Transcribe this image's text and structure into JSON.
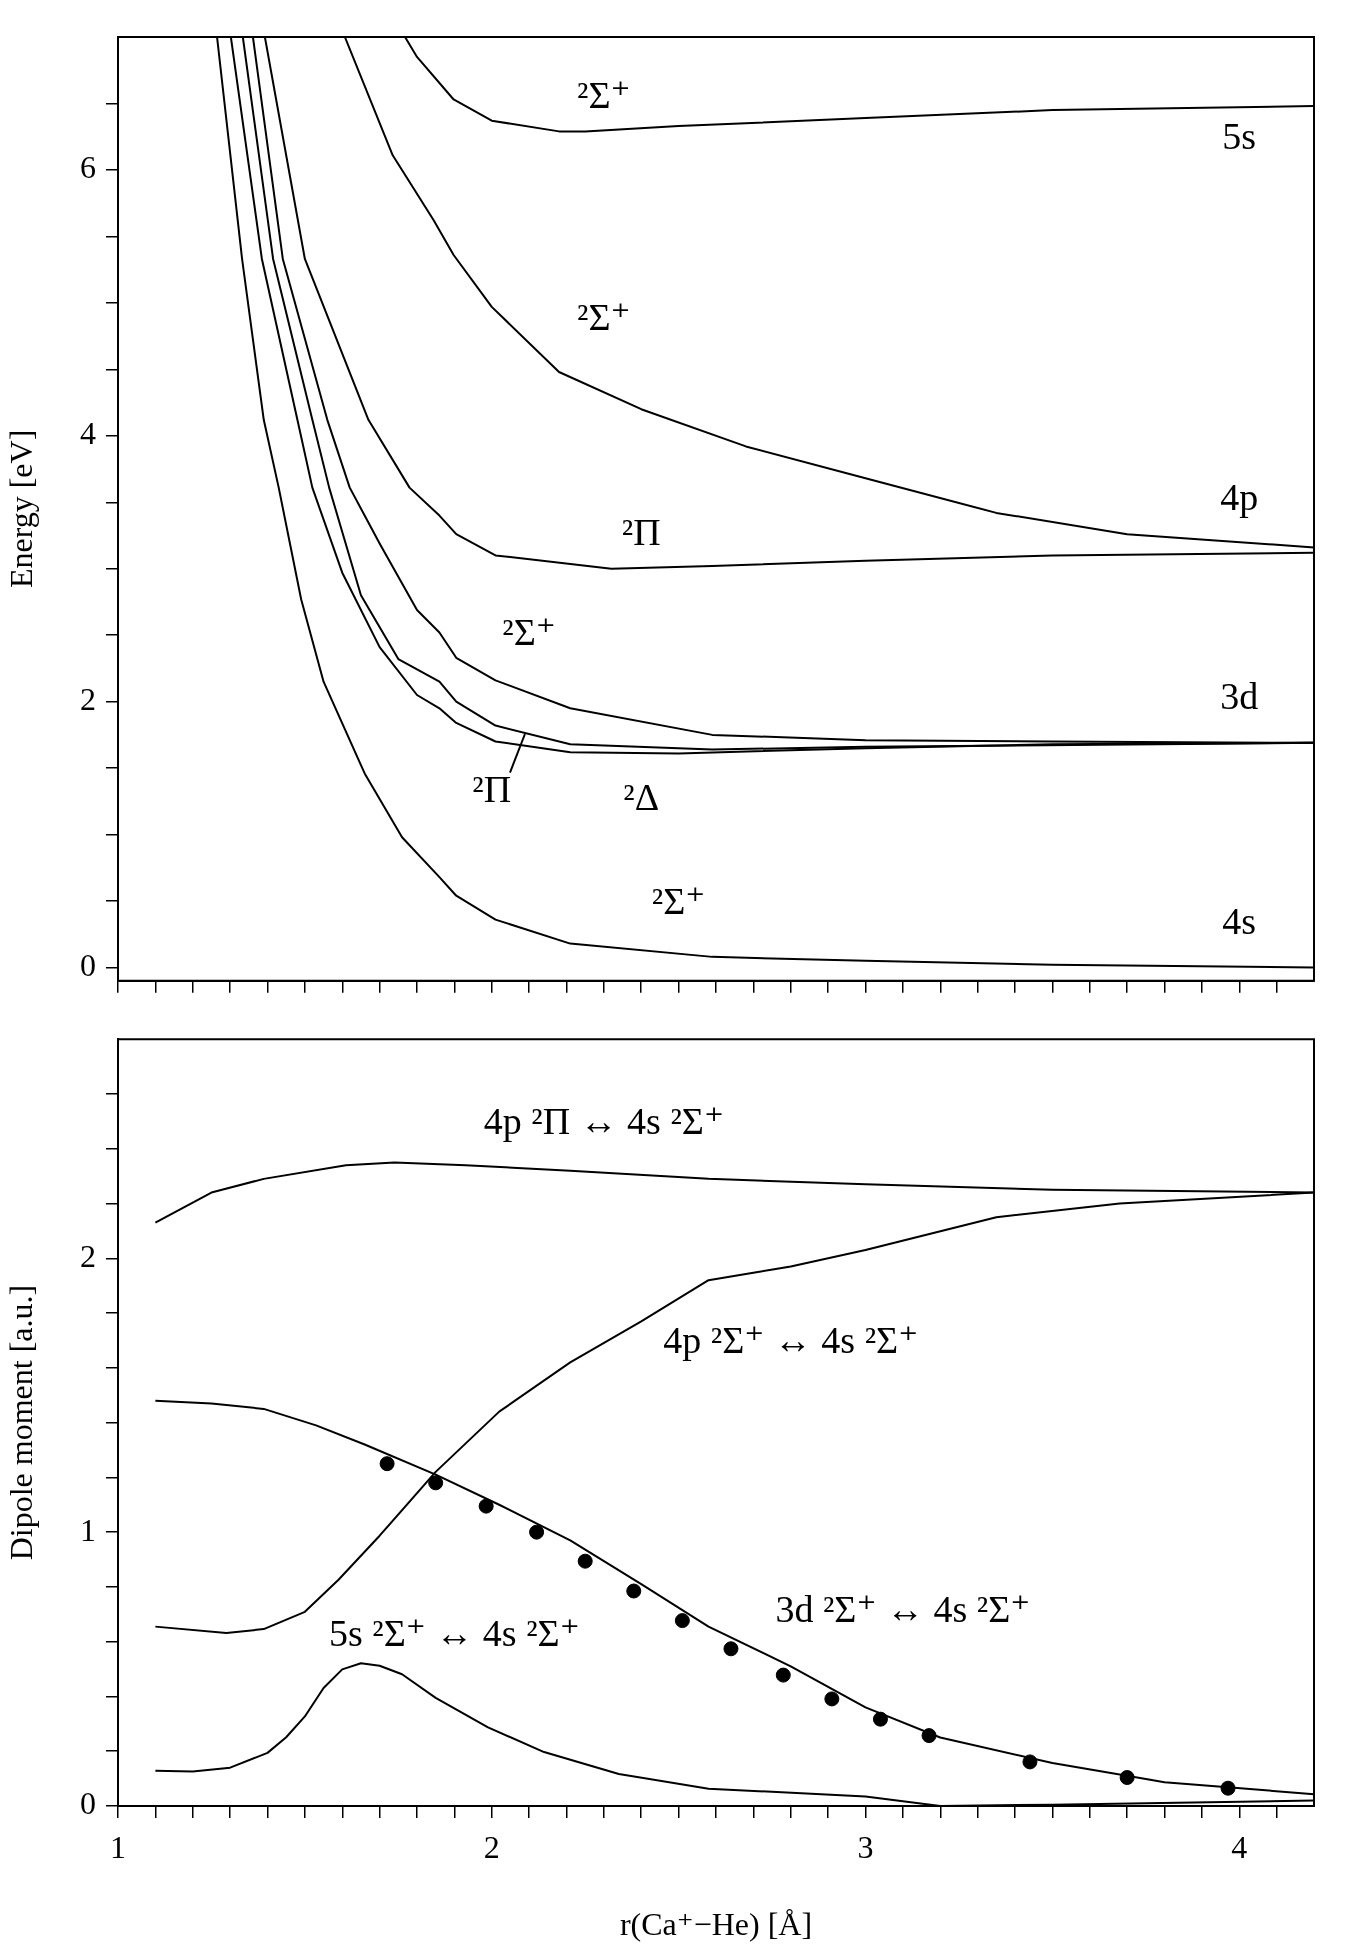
{
  "chart_data": [
    {
      "type": "line",
      "ylabel": "Energy [eV]",
      "xlim": [
        1,
        4.2
      ],
      "ylim": [
        -0.1,
        7
      ],
      "tick_labels": "y",
      "xticks": [
        1,
        {
          "value": 1.1,
          "label": null
        },
        {
          "value": 1.2,
          "label": null
        },
        {
          "value": 1.3,
          "label": null
        },
        {
          "value": 1.4,
          "label": null
        },
        {
          "value": 1.5,
          "label": null
        },
        {
          "value": 1.6,
          "label": null
        },
        {
          "value": 1.7,
          "label": null
        },
        {
          "value": 1.8,
          "label": null
        },
        {
          "value": 1.9,
          "label": null
        },
        2,
        {
          "value": 2.1,
          "label": null
        },
        {
          "value": 2.2,
          "label": null
        },
        {
          "value": 2.3,
          "label": null
        },
        {
          "value": 2.4,
          "label": null
        },
        {
          "value": 2.5,
          "label": null
        },
        {
          "value": 2.6,
          "label": null
        },
        {
          "value": 2.7,
          "label": null
        },
        {
          "value": 2.8,
          "label": null
        },
        {
          "value": 2.9,
          "label": null
        },
        3,
        {
          "value": 3.1,
          "label": null
        },
        {
          "value": 3.2,
          "label": null
        },
        {
          "value": 3.3,
          "label": null
        },
        {
          "value": 3.4,
          "label": null
        },
        {
          "value": 3.5,
          "label": null
        },
        {
          "value": 3.6,
          "label": null
        },
        {
          "value": 3.7,
          "label": null
        },
        {
          "value": 3.8,
          "label": null
        },
        {
          "value": 3.9,
          "label": null
        },
        4,
        {
          "value": 4.1,
          "label": null
        }
      ],
      "yticks": [
        0,
        {
          "value": 0.5,
          "label": null
        },
        {
          "value": 1,
          "label": null
        },
        {
          "value": 1.5,
          "label": null
        },
        2,
        {
          "value": 2.5,
          "label": null
        },
        {
          "value": 3,
          "label": null
        },
        {
          "value": 3.5,
          "label": null
        },
        4,
        {
          "value": 4.5,
          "label": null
        },
        {
          "value": 5,
          "label": null
        },
        {
          "value": 5.5,
          "label": null
        },
        6,
        {
          "value": 6.5,
          "label": null
        }
      ],
      "series": [
        {
          "type": "line",
          "color": "#000000",
          "x": [
            1.265,
            1.332,
            1.39,
            1.43,
            1.49,
            1.55,
            1.66,
            1.76,
            1.86,
            1.905,
            2.01,
            2.21,
            2.59,
            3.0,
            3.5,
            4.2
          ],
          "values": [
            7,
            5.33,
            4.12,
            3.61,
            2.77,
            2.15,
            1.46,
            0.98,
            0.68,
            0.54,
            0.36,
            0.18,
            0.08,
            0.05,
            0.02,
            0
          ]
        },
        {
          "type": "line",
          "color": "#000000",
          "x": [
            1.302,
            1.385,
            1.48,
            1.52,
            1.6,
            1.7,
            1.8,
            1.86,
            1.905,
            2.01,
            2.21,
            2.5,
            3.0,
            3.5,
            4.2
          ],
          "values": [
            7,
            5.33,
            4.12,
            3.61,
            2.97,
            2.41,
            2.05,
            1.95,
            1.84,
            1.7,
            1.62,
            1.61,
            1.65,
            1.68,
            1.69
          ]
        },
        {
          "type": "line",
          "color": "#000000",
          "x": [
            1.334,
            1.415,
            1.52,
            1.565,
            1.65,
            1.75,
            1.86,
            1.905,
            2.01,
            2.21,
            2.59,
            3.0,
            4.2
          ],
          "values": [
            7,
            5.33,
            4.12,
            3.61,
            2.8,
            2.32,
            2.15,
            2.0,
            1.82,
            1.68,
            1.64,
            1.66,
            1.69
          ]
        },
        {
          "type": "line",
          "color": "#000000",
          "x": [
            1.361,
            1.441,
            1.56,
            1.62,
            1.7,
            1.8,
            1.86,
            1.905,
            2.01,
            2.21,
            2.59,
            3.0,
            3.5,
            4.2
          ],
          "values": [
            7,
            5.33,
            4.12,
            3.61,
            3.19,
            2.69,
            2.52,
            2.33,
            2.16,
            1.95,
            1.75,
            1.71,
            1.7,
            1.69
          ]
        },
        {
          "type": "line",
          "color": "#000000",
          "x": [
            1.393,
            1.5,
            1.67,
            1.78,
            1.86,
            1.905,
            2.01,
            2.32,
            2.59,
            3.0,
            3.5,
            4.2
          ],
          "values": [
            7,
            5.33,
            4.12,
            3.61,
            3.4,
            3.26,
            3.1,
            3.0,
            3.02,
            3.06,
            3.1,
            3.12
          ]
        },
        {
          "type": "line",
          "color": "#000000",
          "x": [
            1.607,
            1.735,
            1.845,
            1.898,
            2.0,
            2.18,
            2.4,
            2.68,
            3.0,
            3.35,
            3.7,
            4.2
          ],
          "values": [
            7,
            6.11,
            5.62,
            5.36,
            4.97,
            4.48,
            4.2,
            3.92,
            3.68,
            3.42,
            3.26,
            3.16
          ]
        },
        {
          "type": "line",
          "color": "#000000",
          "x": [
            1.768,
            1.8,
            1.898,
            2.0,
            2.18,
            2.25,
            2.5,
            3.0,
            3.5,
            4.2
          ],
          "values": [
            7,
            6.85,
            6.53,
            6.37,
            6.29,
            6.29,
            6.33,
            6.39,
            6.45,
            6.48
          ]
        }
      ],
      "annotations": [
        "²Σ⁺",
        "5s",
        "²Σ⁺",
        "4p",
        "²Π",
        "²Σ⁺",
        "3d",
        "²Π",
        "²Δ",
        "²Σ⁺",
        "4s"
      ]
    },
    {
      "type": "line",
      "xlabel": "r(Ca⁺−He) [Å]",
      "ylabel": "Dipole moment [a.u.]",
      "xlim": [
        1,
        4.2
      ],
      "ylim": [
        0,
        2.8
      ],
      "xticks": [
        1,
        {
          "value": 1.1,
          "label": null
        },
        {
          "value": 1.2,
          "label": null
        },
        {
          "value": 1.3,
          "label": null
        },
        {
          "value": 1.4,
          "label": null
        },
        {
          "value": 1.5,
          "label": null
        },
        {
          "value": 1.6,
          "label": null
        },
        {
          "value": 1.7,
          "label": null
        },
        {
          "value": 1.8,
          "label": null
        },
        {
          "value": 1.9,
          "label": null
        },
        2,
        {
          "value": 2.1,
          "label": null
        },
        {
          "value": 2.2,
          "label": null
        },
        {
          "value": 2.3,
          "label": null
        },
        {
          "value": 2.4,
          "label": null
        },
        {
          "value": 2.5,
          "label": null
        },
        {
          "value": 2.6,
          "label": null
        },
        {
          "value": 2.7,
          "label": null
        },
        {
          "value": 2.8,
          "label": null
        },
        {
          "value": 2.9,
          "label": null
        },
        3,
        {
          "value": 3.1,
          "label": null
        },
        {
          "value": 3.2,
          "label": null
        },
        {
          "value": 3.3,
          "label": null
        },
        {
          "value": 3.4,
          "label": null
        },
        {
          "value": 3.5,
          "label": null
        },
        {
          "value": 3.6,
          "label": null
        },
        {
          "value": 3.7,
          "label": null
        },
        {
          "value": 3.8,
          "label": null
        },
        {
          "value": 3.9,
          "label": null
        },
        4,
        {
          "value": 4.1,
          "label": null
        }
      ],
      "yticks": [
        0,
        {
          "value": 0.2,
          "label": null
        },
        {
          "value": 0.4,
          "label": null
        },
        {
          "value": 0.6,
          "label": null
        },
        {
          "value": 0.8,
          "label": null
        },
        1,
        {
          "value": 1.2,
          "label": null
        },
        {
          "value": 1.4,
          "label": null
        },
        {
          "value": 1.6,
          "label": null
        },
        {
          "value": 1.8,
          "label": null
        },
        2,
        {
          "value": 2.2,
          "label": null
        },
        {
          "value": 2.4,
          "label": null
        },
        {
          "value": 2.6,
          "label": null
        }
      ],
      "series": [
        {
          "type": "line",
          "color": "#000000",
          "x": [
            1.1,
            1.25,
            1.39,
            1.61,
            1.74,
            1.93,
            2.21,
            2.58,
            3.0,
            3.5,
            4.2
          ],
          "values": [
            2.13,
            2.24,
            2.29,
            2.34,
            2.35,
            2.34,
            2.32,
            2.29,
            2.27,
            2.25,
            2.24
          ]
        },
        {
          "type": "line",
          "color": "#000000",
          "x": [
            1.1,
            1.29,
            1.39,
            1.5,
            1.59,
            1.7,
            1.85,
            2.02,
            2.21,
            2.4,
            2.58,
            2.8,
            3.0,
            3.35,
            3.68,
            4.2
          ],
          "values": [
            0.655,
            0.632,
            0.646,
            0.709,
            0.826,
            0.987,
            1.22,
            1.44,
            1.62,
            1.77,
            1.92,
            1.97,
            2.03,
            2.15,
            2.2,
            2.24
          ]
        },
        {
          "type": "line",
          "color": "#000000",
          "x": [
            1.1,
            1.25,
            1.39,
            1.53,
            1.66,
            1.85,
            2.02,
            2.21,
            2.4,
            2.58,
            2.8,
            3.0,
            3.2,
            3.5,
            3.8,
            4.2
          ],
          "values": [
            1.48,
            1.47,
            1.45,
            1.39,
            1.32,
            1.21,
            1.1,
            0.97,
            0.81,
            0.655,
            0.51,
            0.36,
            0.25,
            0.157,
            0.087,
            0.043
          ]
        },
        {
          "type": "scatter",
          "marker": "circle",
          "color": "#000000",
          "x": [
            1.72,
            1.85,
            1.985,
            2.12,
            2.25,
            2.38,
            2.51,
            2.64,
            2.78,
            2.91,
            3.04,
            3.17,
            3.44,
            3.7,
            3.97
          ],
          "values": [
            1.25,
            1.18,
            1.095,
            1.0,
            0.894,
            0.785,
            0.677,
            0.574,
            0.478,
            0.391,
            0.317,
            0.257,
            0.161,
            0.104,
            0.065
          ]
        },
        {
          "type": "line",
          "color": "#000000",
          "x": [
            1.1,
            1.2,
            1.3,
            1.4,
            1.45,
            1.5,
            1.55,
            1.6,
            1.65,
            1.7,
            1.76,
            1.85,
            1.99,
            2.14,
            2.34,
            2.58,
            3.0,
            3.2,
            3.5,
            4.2
          ],
          "values": [
            0.129,
            0.126,
            0.14,
            0.194,
            0.251,
            0.327,
            0.431,
            0.499,
            0.521,
            0.512,
            0.481,
            0.395,
            0.287,
            0.197,
            0.117,
            0.063,
            0.035,
            0.0,
            0.005,
            0.02
          ]
        }
      ],
      "annotations": [
        "4p ²Π ↔ 4s ²Σ⁺",
        "4p ²Σ⁺ ↔ 4s ²Σ⁺",
        "3d ²Σ⁺ ↔ 4s ²Σ⁺",
        "5s ²Σ⁺ ↔ 4s ²Σ⁺"
      ]
    }
  ]
}
